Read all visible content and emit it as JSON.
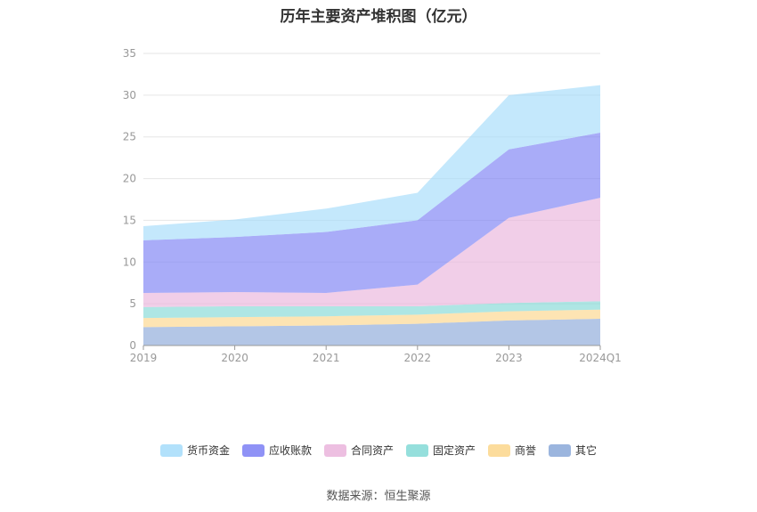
{
  "chart_data": {
    "type": "area",
    "stacked": true,
    "title": "历年主要资产堆积图（亿元）",
    "categories": [
      "2019",
      "2020",
      "2021",
      "2022",
      "2023",
      "2024Q1"
    ],
    "ylim": [
      0,
      35
    ],
    "yticks": [
      0,
      5,
      10,
      15,
      20,
      25,
      30,
      35
    ],
    "grid": true,
    "legend_position": "bottom",
    "series": [
      {
        "name": "其它",
        "color": "#8aa8d8",
        "values": [
          2.2,
          2.3,
          2.4,
          2.6,
          3.0,
          3.2
        ]
      },
      {
        "name": "商誉",
        "color": "#fcd68b",
        "values": [
          1.1,
          1.1,
          1.1,
          1.1,
          1.1,
          1.1
        ]
      },
      {
        "name": "固定资产",
        "color": "#82d9d6",
        "values": [
          1.3,
          1.3,
          1.2,
          1.0,
          1.0,
          1.0
        ]
      },
      {
        "name": "合同资产",
        "color": "#eab4dc",
        "values": [
          1.7,
          1.7,
          1.6,
          2.6,
          10.2,
          12.4
        ]
      },
      {
        "name": "应收账款",
        "color": "#7b7ff5",
        "values": [
          6.3,
          6.6,
          7.3,
          7.7,
          8.2,
          7.8
        ]
      },
      {
        "name": "货币资金",
        "color": "#a4dcfa",
        "values": [
          1.7,
          2.1,
          2.8,
          3.3,
          6.5,
          5.7
        ]
      }
    ],
    "legend_order": [
      "货币资金",
      "应收账款",
      "合同资产",
      "固定资产",
      "商誉",
      "其它"
    ]
  },
  "footer": {
    "source": "数据来源：恒生聚源"
  }
}
